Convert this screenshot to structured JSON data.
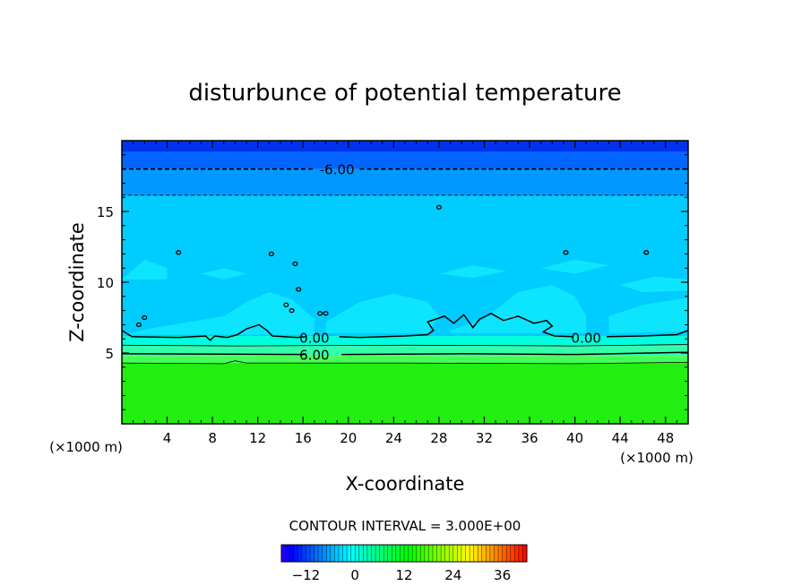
{
  "chart_data": {
    "type": "heatmap",
    "title": "disturbunce of potential temperature",
    "xlabel": "X-coordinate",
    "ylabel": "Z-coordinate",
    "x_unit_left": "(×1000 m)",
    "x_unit_right": "(×1000 m)",
    "xlim": [
      0,
      50
    ],
    "ylim": [
      0,
      20
    ],
    "x_ticks": [
      4,
      8,
      12,
      16,
      20,
      24,
      28,
      32,
      36,
      40,
      44,
      48
    ],
    "y_ticks": [
      5,
      10,
      15
    ],
    "contour_interval_text": "CONTOUR INTERVAL = 3.000E+00",
    "contour_labels": [
      {
        "text": "-6.00",
        "x": 19,
        "z": 18.0
      },
      {
        "text": "0.00",
        "x": 17,
        "z": 6.1
      },
      {
        "text": "0.00",
        "x": 41,
        "z": 6.1
      },
      {
        "text": "6.00",
        "x": 17,
        "z": 4.9
      }
    ],
    "field_bands": [
      {
        "z_from": 0,
        "z_to": 4.3,
        "value": 9
      },
      {
        "z_from": 4.3,
        "z_to": 4.8,
        "value": 6
      },
      {
        "z_from": 4.8,
        "z_to": 5.5,
        "value": 3
      },
      {
        "z_from": 5.5,
        "z_to": 6.2,
        "value": 1.5
      },
      {
        "z_from": 6.2,
        "z_to": 16.1,
        "value": -1.5
      },
      {
        "z_from": 16.1,
        "z_to": 18.0,
        "value": -3
      },
      {
        "z_from": 18.0,
        "z_to": 19.2,
        "value": -4.5
      },
      {
        "z_from": 19.2,
        "z_to": 20,
        "value": -6
      }
    ],
    "colorbar": {
      "min": -18,
      "max": 42,
      "tick_values": [
        -12,
        0,
        12,
        24,
        36
      ],
      "tick_labels": [
        "−12",
        "0",
        "12",
        "24",
        "36"
      ]
    },
    "colors": {
      "band_9": "#22ee11",
      "band_6": "#44ff55",
      "band_3": "#33ffaa",
      "band_1_5": "#00ffdd",
      "band_m1_5": "#00ccff",
      "band_m3": "#0099ff",
      "band_m4_5": "#0066ff",
      "band_m6": "#0033ee",
      "patch_light": "#11eeff"
    },
    "grid": false,
    "legend": "colorbar-bottom"
  }
}
